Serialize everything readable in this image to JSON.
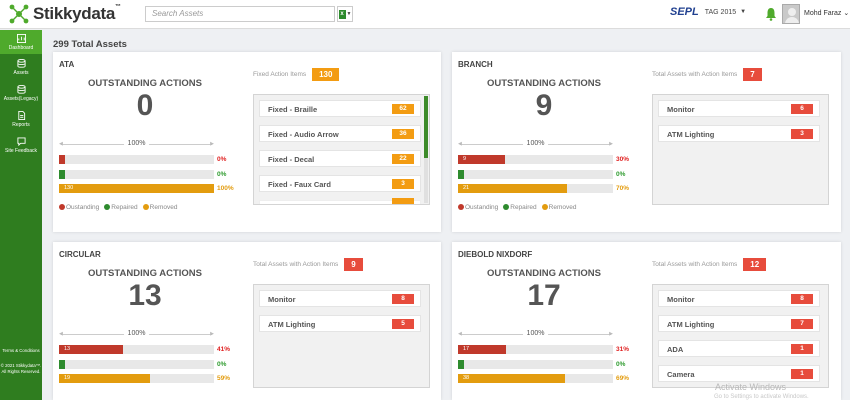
{
  "app": {
    "name": "Stikkydata",
    "tm": "™"
  },
  "header": {
    "search_placeholder": "Search Assets",
    "org_logo": "SEPL",
    "tag": "TAG 2015",
    "user_name": "Mohd Faraz"
  },
  "sidebar": {
    "items": [
      {
        "label": "Dashboard",
        "icon": "dashboard-icon",
        "active": true
      },
      {
        "label": "Assets",
        "icon": "database-icon"
      },
      {
        "label": "Assets(Legacy)",
        "icon": "database-icon"
      },
      {
        "label": "Reports",
        "icon": "document-icon"
      },
      {
        "label": "Site Feedback",
        "icon": "chat-icon"
      }
    ],
    "terms": "Terms & Conditions",
    "copyright": "© 2021 Stikkydata™. All Rights Reserved."
  },
  "main": {
    "total_title": "299 Total Assets",
    "pct_label": "100%",
    "legend": [
      "Oustanding",
      "Repaired",
      "Removed"
    ],
    "colors": {
      "outstanding": "#c0392b",
      "repaired": "#2e8b2e",
      "removed": "#e39c0f",
      "brand_green": "#2f7d1f"
    },
    "cards": [
      {
        "title": "ATA",
        "oa_label": "OUTSTANDING ACTIONS",
        "oa_count": "0",
        "bars": [
          {
            "label": "",
            "pct": "0%",
            "fraction": 0.0
          },
          {
            "label": "",
            "pct": "0%",
            "fraction": 0.0
          },
          {
            "label": "130",
            "pct": "100%",
            "fraction": 1.0
          }
        ],
        "items_label": "Fixed Action Items",
        "items_count": "130",
        "items": [
          {
            "name": "Fixed - Braille",
            "count": "62"
          },
          {
            "name": "Fixed - Audio Arrow",
            "count": "36"
          },
          {
            "name": "Fixed - Decal",
            "count": "22"
          },
          {
            "name": "Fixed - Faux Card",
            "count": "3"
          }
        ]
      },
      {
        "title": "BRANCH",
        "oa_label": "OUTSTANDING ACTIONS",
        "oa_count": "9",
        "bars": [
          {
            "label": "9",
            "pct": "30%",
            "fraction": 0.3
          },
          {
            "label": "",
            "pct": "0%",
            "fraction": 0.0
          },
          {
            "label": "21",
            "pct": "70%",
            "fraction": 0.7
          }
        ],
        "items_label": "Total Assets with Action Items",
        "items_count": "7",
        "items": [
          {
            "name": "Monitor",
            "count": "6"
          },
          {
            "name": "ATM Lighting",
            "count": "3"
          }
        ]
      },
      {
        "title": "CIRCULAR",
        "oa_label": "OUTSTANDING ACTIONS",
        "oa_count": "13",
        "bars": [
          {
            "label": "13",
            "pct": "41%",
            "fraction": 0.41
          },
          {
            "label": "",
            "pct": "0%",
            "fraction": 0.0
          },
          {
            "label": "19",
            "pct": "59%",
            "fraction": 0.59
          }
        ],
        "items_label": "Total Assets with Action Items",
        "items_count": "9",
        "items": [
          {
            "name": "Monitor",
            "count": "8"
          },
          {
            "name": "ATM Lighting",
            "count": "5"
          }
        ]
      },
      {
        "title": "DIEBOLD NIXDORF",
        "oa_label": "OUTSTANDING ACTIONS",
        "oa_count": "17",
        "bars": [
          {
            "label": "17",
            "pct": "31%",
            "fraction": 0.31
          },
          {
            "label": "",
            "pct": "0%",
            "fraction": 0.0
          },
          {
            "label": "38",
            "pct": "69%",
            "fraction": 0.69
          }
        ],
        "items_label": "Total Assets with Action Items",
        "items_count": "12",
        "items": [
          {
            "name": "Monitor",
            "count": "8"
          },
          {
            "name": "ATM Lighting",
            "count": "7"
          },
          {
            "name": "ADA",
            "count": "1"
          },
          {
            "name": "Camera",
            "count": "1"
          }
        ]
      }
    ]
  },
  "watermark": {
    "line1": "Activate Windows",
    "line2": "Go to Settings to activate Windows."
  }
}
